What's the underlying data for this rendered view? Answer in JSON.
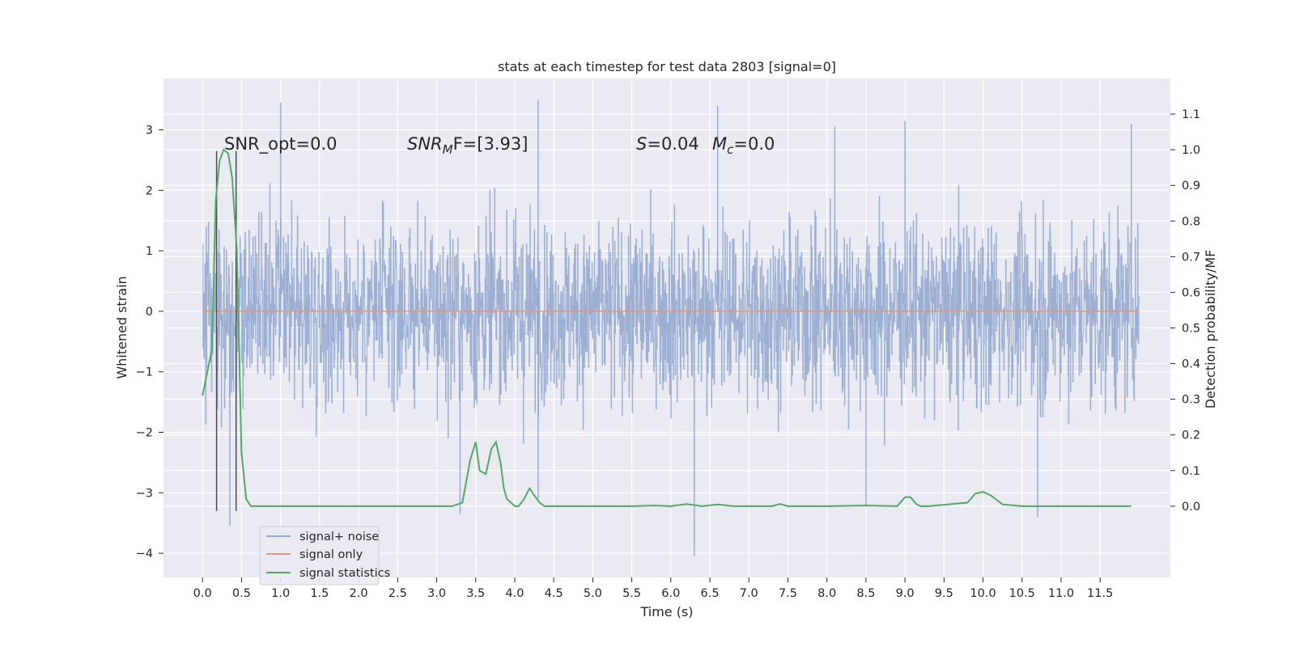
{
  "chart_data": {
    "type": "line",
    "title": "stats at each timestep for test data 2803 [signal=0]",
    "xlabel": "Time (s)",
    "ylabel_left": "Whitened strain",
    "ylabel_right": "Detection probability/MF",
    "xlim": [
      -0.5,
      12.4
    ],
    "ylim_left": [
      -4.4,
      3.85
    ],
    "ylim_right": [
      -0.2,
      1.2
    ],
    "x_ticks": [
      0.0,
      0.5,
      1.0,
      1.5,
      2.0,
      2.5,
      3.0,
      3.5,
      4.0,
      4.5,
      5.0,
      5.5,
      6.0,
      6.5,
      7.0,
      7.5,
      8.0,
      8.5,
      9.0,
      9.5,
      10.0,
      10.5,
      11.0,
      11.5
    ],
    "x_tick_labels": [
      "0.0",
      "0.5",
      "1.0",
      "1.5",
      "2.0",
      "2.5",
      "3.0",
      "3.5",
      "4.0",
      "4.5",
      "5.0",
      "5.5",
      "6.0",
      "6.5",
      "7.0",
      "7.5",
      "8.0",
      "8.5",
      "9.0",
      "9.5",
      "10.0",
      "10.5",
      "11.0",
      "11.5"
    ],
    "y_left_ticks": [
      3,
      2,
      1,
      0,
      -1,
      -2,
      -3,
      -4
    ],
    "y_left_tick_labels": [
      "3",
      "2",
      "1",
      "0",
      "−1",
      "−2",
      "−3",
      "−4"
    ],
    "y_right_ticks": [
      1.1,
      1.0,
      0.9,
      0.8,
      0.7,
      0.6,
      0.5,
      0.4,
      0.3,
      0.2,
      0.1,
      0.0
    ],
    "y_right_tick_labels": [
      "1.1",
      "1.0",
      "0.9",
      "0.8",
      "0.7",
      "0.6",
      "0.5",
      "0.4",
      "0.3",
      "0.2",
      "0.1",
      "0.0"
    ],
    "grid": true,
    "legend": {
      "placement": "lower-left",
      "entries": [
        {
          "label": "signal+ noise",
          "color": "#8fa6cf"
        },
        {
          "label": "signal only",
          "color": "#dd9a82"
        },
        {
          "label": "signal statistics",
          "color": "#55a868"
        }
      ]
    },
    "annotations": {
      "snr_opt": "SNR_opt=0.0",
      "snr_mf_main": "SNR",
      "snr_mf_sub": "M",
      "snr_mf_rest": "F=[3.93]",
      "s_label": "S",
      "s_value": "=0.04",
      "mc_label": "M",
      "mc_sub": "c",
      "mc_value": "=0.0"
    },
    "series": [
      {
        "name": "signal+ noise",
        "axis": "left",
        "color": "#8fa6cf",
        "t_start": 0.0,
        "t_end": 12.0,
        "n_samples": 2400,
        "spread_ranges": [
          [
            1.5,
            2.5
          ],
          [
            -1.5,
            -2.4
          ]
        ],
        "extremes": [
          {
            "x": 1.0,
            "y": 3.45
          },
          {
            "x": 4.3,
            "y": 3.5
          },
          {
            "x": 6.6,
            "y": 3.4
          },
          {
            "x": 9.0,
            "y": 3.15
          },
          {
            "x": 11.9,
            "y": 3.1
          },
          {
            "x": 8.1,
            "y": 3.05
          },
          {
            "x": 6.3,
            "y": -4.05
          },
          {
            "x": 0.35,
            "y": -3.55
          },
          {
            "x": 3.3,
            "y": -3.35
          },
          {
            "x": 8.5,
            "y": -3.2
          },
          {
            "x": 10.7,
            "y": -3.4
          },
          {
            "x": 4.3,
            "y": -3.1
          }
        ]
      },
      {
        "name": "signal only",
        "axis": "left",
        "color": "#dd9a82",
        "x": [
          0.0,
          12.0
        ],
        "y": [
          0.0,
          0.0
        ]
      },
      {
        "name": "signal statistics",
        "axis": "right",
        "color": "#55a868",
        "x": [
          0.0,
          0.12,
          0.17,
          0.22,
          0.27,
          0.33,
          0.38,
          0.44,
          0.5,
          0.56,
          0.62,
          3.2,
          3.33,
          3.43,
          3.5,
          3.55,
          3.63,
          3.7,
          3.76,
          3.82,
          3.86,
          3.9,
          4.0,
          4.05,
          4.12,
          4.19,
          4.25,
          4.32,
          4.38,
          4.5,
          5.0,
          5.5,
          5.8,
          6.0,
          6.2,
          6.4,
          6.6,
          6.8,
          7.3,
          7.4,
          7.5,
          8.0,
          8.5,
          8.9,
          9.0,
          9.07,
          9.15,
          9.2,
          9.3,
          9.8,
          9.9,
          10.0,
          10.1,
          10.25,
          10.5,
          11.0,
          11.9
        ],
        "y": [
          0.31,
          0.44,
          0.86,
          0.97,
          1.0,
          0.99,
          0.92,
          0.72,
          0.15,
          0.02,
          0.0,
          0.0,
          0.01,
          0.13,
          0.18,
          0.1,
          0.09,
          0.16,
          0.18,
          0.12,
          0.05,
          0.02,
          0.0,
          0.0,
          0.02,
          0.05,
          0.03,
          0.01,
          0.0,
          0.0,
          0.0,
          0.0,
          0.002,
          0.0,
          0.006,
          0.0,
          0.005,
          0.0,
          0.0,
          0.006,
          0.0,
          0.0,
          0.002,
          0.0,
          0.025,
          0.025,
          0.005,
          0.0,
          0.0,
          0.01,
          0.035,
          0.04,
          0.03,
          0.005,
          0.0,
          0.0,
          0.0
        ]
      }
    ],
    "marker_lines": [
      {
        "x": 0.18,
        "y_bottom": -3.3,
        "y_top": 2.65
      },
      {
        "x": 0.43,
        "y_bottom": -3.3,
        "y_top": 2.65
      }
    ]
  }
}
